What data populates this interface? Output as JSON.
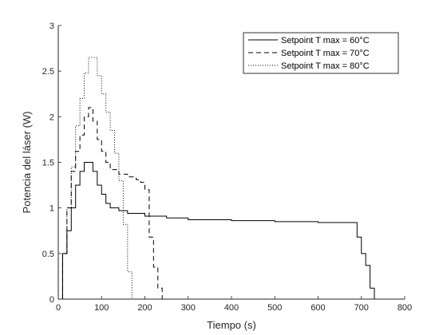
{
  "chart_data": {
    "type": "line",
    "title": "",
    "xlabel": "Tiempo (s)",
    "ylabel": "Potencia del láser (W)",
    "xlim": [
      0,
      800
    ],
    "ylim": [
      0,
      3
    ],
    "xticks": [
      0,
      100,
      200,
      300,
      400,
      500,
      600,
      700,
      800
    ],
    "xtick_labels": [
      "0",
      "100",
      "200",
      "300",
      "400",
      "500",
      "600",
      "700",
      "800"
    ],
    "yticks": [
      0,
      0.5,
      1,
      1.5,
      2,
      2.5,
      3
    ],
    "ytick_labels": [
      "0",
      "0.5",
      "1",
      "1.5",
      "2",
      "2.5",
      "3"
    ],
    "grid": false,
    "legend_position": "top-right",
    "step": true,
    "series": [
      {
        "name": "Setpoint T max = 60°C",
        "line_style": "solid",
        "color": "#000000",
        "points": [
          [
            10,
            0
          ],
          [
            10,
            0.5
          ],
          [
            20,
            0.5
          ],
          [
            20,
            0.75
          ],
          [
            30,
            0.75
          ],
          [
            30,
            1.0
          ],
          [
            40,
            1.0
          ],
          [
            40,
            1.25
          ],
          [
            50,
            1.25
          ],
          [
            50,
            1.4
          ],
          [
            60,
            1.4
          ],
          [
            60,
            1.5
          ],
          [
            80,
            1.5
          ],
          [
            80,
            1.4
          ],
          [
            90,
            1.4
          ],
          [
            90,
            1.25
          ],
          [
            100,
            1.25
          ],
          [
            100,
            1.15
          ],
          [
            110,
            1.15
          ],
          [
            110,
            1.05
          ],
          [
            120,
            1.05
          ],
          [
            120,
            1.0
          ],
          [
            140,
            1.0
          ],
          [
            140,
            0.97
          ],
          [
            160,
            0.97
          ],
          [
            160,
            0.94
          ],
          [
            200,
            0.94
          ],
          [
            200,
            0.91
          ],
          [
            250,
            0.91
          ],
          [
            250,
            0.89
          ],
          [
            300,
            0.89
          ],
          [
            300,
            0.87
          ],
          [
            400,
            0.87
          ],
          [
            400,
            0.86
          ],
          [
            500,
            0.86
          ],
          [
            500,
            0.85
          ],
          [
            600,
            0.85
          ],
          [
            600,
            0.84
          ],
          [
            690,
            0.84
          ],
          [
            690,
            0.68
          ],
          [
            700,
            0.68
          ],
          [
            700,
            0.5
          ],
          [
            710,
            0.5
          ],
          [
            710,
            0.37
          ],
          [
            720,
            0.37
          ],
          [
            720,
            0.12
          ],
          [
            730,
            0.12
          ],
          [
            730,
            0
          ]
        ]
      },
      {
        "name": "Setpoint T max = 70°C",
        "line_style": "dashed",
        "color": "#000000",
        "points": [
          [
            10,
            0
          ],
          [
            10,
            0.5
          ],
          [
            20,
            0.5
          ],
          [
            20,
            1.0
          ],
          [
            30,
            1.0
          ],
          [
            30,
            1.4
          ],
          [
            40,
            1.4
          ],
          [
            40,
            1.62
          ],
          [
            50,
            1.62
          ],
          [
            50,
            1.8
          ],
          [
            60,
            1.8
          ],
          [
            60,
            2.0
          ],
          [
            70,
            2.0
          ],
          [
            70,
            2.1
          ],
          [
            80,
            2.1
          ],
          [
            80,
            1.95
          ],
          [
            90,
            1.95
          ],
          [
            90,
            1.75
          ],
          [
            100,
            1.75
          ],
          [
            100,
            1.62
          ],
          [
            110,
            1.62
          ],
          [
            110,
            1.5
          ],
          [
            120,
            1.5
          ],
          [
            120,
            1.42
          ],
          [
            140,
            1.42
          ],
          [
            140,
            1.37
          ],
          [
            160,
            1.37
          ],
          [
            160,
            1.34
          ],
          [
            180,
            1.34
          ],
          [
            180,
            1.31
          ],
          [
            190,
            1.31
          ],
          [
            190,
            1.28
          ],
          [
            200,
            1.28
          ],
          [
            200,
            1.2
          ],
          [
            210,
            1.2
          ],
          [
            210,
            0.68
          ],
          [
            220,
            0.68
          ],
          [
            220,
            0.35
          ],
          [
            230,
            0.35
          ],
          [
            230,
            0.12
          ],
          [
            240,
            0.12
          ],
          [
            240,
            0
          ]
        ]
      },
      {
        "name": "Setpoint T max = 80°C",
        "line_style": "dotted",
        "color": "#000000",
        "points": [
          [
            10,
            0
          ],
          [
            10,
            0.5
          ],
          [
            20,
            0.5
          ],
          [
            20,
            1.0
          ],
          [
            30,
            1.0
          ],
          [
            30,
            1.45
          ],
          [
            40,
            1.45
          ],
          [
            40,
            1.9
          ],
          [
            50,
            1.9
          ],
          [
            50,
            2.2
          ],
          [
            60,
            2.2
          ],
          [
            60,
            2.48
          ],
          [
            70,
            2.48
          ],
          [
            70,
            2.65
          ],
          [
            90,
            2.65
          ],
          [
            90,
            2.45
          ],
          [
            100,
            2.45
          ],
          [
            100,
            2.25
          ],
          [
            110,
            2.25
          ],
          [
            110,
            2.05
          ],
          [
            120,
            2.05
          ],
          [
            120,
            1.85
          ],
          [
            130,
            1.85
          ],
          [
            130,
            1.6
          ],
          [
            140,
            1.6
          ],
          [
            140,
            1.3
          ],
          [
            150,
            1.3
          ],
          [
            150,
            0.82
          ],
          [
            160,
            0.82
          ],
          [
            160,
            0.3
          ],
          [
            170,
            0.3
          ],
          [
            170,
            0
          ]
        ]
      }
    ]
  }
}
